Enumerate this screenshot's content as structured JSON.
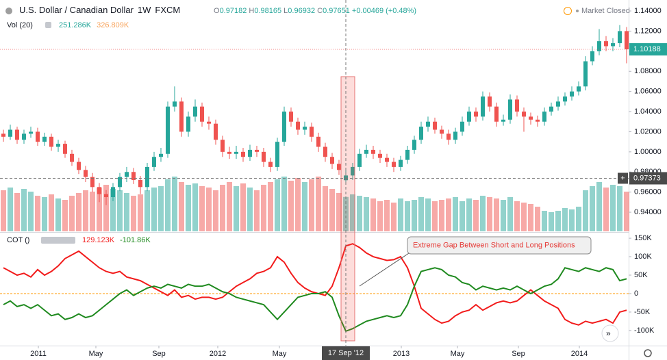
{
  "chart_data": [
    {
      "type": "candlestick",
      "title": "U.S. Dollar / Canadian Dollar",
      "interval": "1W",
      "source": "FXCM",
      "ohlc_letters": [
        "O",
        "H",
        "L",
        "C"
      ],
      "change": "+0.00469 (+0.48%)",
      "status": "Market Closed",
      "up_color": "#26a69a",
      "down_color": "#ef5350",
      "open": [
        1.018,
        1.015,
        1.022,
        1.012,
        1.018,
        1.02,
        1.01,
        1.015,
        1.005,
        1.008,
        0.998,
        0.99,
        0.982,
        0.975,
        0.965,
        0.958,
        0.955,
        0.965,
        0.975,
        0.98,
        0.972,
        0.965,
        0.985,
        0.995,
        0.998,
        1.045,
        1.05,
        1.02,
        1.035,
        1.045,
        1.03,
        1.028,
        1.012,
        1.0,
        0.998,
        1.0,
        0.995,
        1.002,
        1.0,
        0.99,
        0.985,
        1.01,
        1.04,
        1.03,
        1.022,
        1.025,
        1.015,
        1.005,
        0.995,
        0.988,
        0.97182,
        0.97651,
        0.985,
        0.998,
        1.002,
        0.998,
        0.994,
        0.99,
        0.985,
        0.992,
        1.002,
        1.012,
        1.025,
        1.03,
        1.022,
        1.018,
        1.012,
        1.02,
        1.03,
        1.04,
        1.035,
        1.055,
        1.045,
        1.03,
        1.032,
        1.052,
        1.04,
        1.035,
        1.032,
        1.03,
        1.04,
        1.045,
        1.05,
        1.055,
        1.06,
        1.065,
        1.09,
        1.1,
        1.11,
        1.105,
        1.108,
        1.12
      ],
      "high": [
        1.022,
        1.027,
        1.025,
        1.022,
        1.025,
        1.024,
        1.019,
        1.018,
        1.012,
        1.011,
        1.002,
        0.994,
        0.986,
        0.979,
        0.969,
        0.962,
        0.969,
        0.979,
        0.985,
        0.984,
        0.976,
        0.989,
        1.0,
        1.004,
        1.05,
        1.065,
        1.054,
        1.04,
        1.052,
        1.049,
        1.035,
        1.032,
        1.016,
        1.005,
        1.006,
        1.004,
        1.007,
        1.006,
        1.004,
        0.994,
        1.014,
        1.045,
        1.044,
        1.034,
        1.03,
        1.029,
        1.019,
        1.009,
        0.999,
        0.992,
        0.98165,
        0.989,
        1.003,
        1.007,
        1.006,
        1.002,
        0.998,
        0.994,
        0.996,
        1.006,
        1.016,
        1.03,
        1.035,
        1.034,
        1.026,
        1.022,
        1.024,
        1.035,
        1.045,
        1.044,
        1.06,
        1.059,
        1.049,
        1.037,
        1.057,
        1.056,
        1.044,
        1.039,
        1.036,
        1.044,
        1.049,
        1.055,
        1.059,
        1.065,
        1.07,
        1.095,
        1.105,
        1.122,
        1.115,
        1.113,
        1.126,
        1.124
      ],
      "low": [
        1.01,
        1.012,
        1.008,
        1.008,
        1.014,
        1.006,
        1.006,
        1.001,
        1.0,
        0.994,
        0.986,
        0.978,
        0.97,
        0.96,
        0.95,
        0.947,
        0.951,
        0.961,
        0.97,
        0.968,
        0.958,
        0.961,
        0.981,
        0.99,
        0.994,
        1.04,
        1.015,
        1.015,
        1.03,
        1.025,
        1.022,
        1.007,
        0.995,
        0.993,
        0.993,
        0.99,
        0.991,
        0.995,
        0.985,
        0.98,
        0.981,
        1.006,
        1.025,
        1.017,
        1.017,
        1.01,
        1.0,
        0.99,
        0.983,
        0.977,
        0.96932,
        0.972,
        0.981,
        0.994,
        0.993,
        0.989,
        0.985,
        0.98,
        0.981,
        0.988,
        0.998,
        1.008,
        1.02,
        1.018,
        1.013,
        1.007,
        1.008,
        1.016,
        1.026,
        1.03,
        1.031,
        1.04,
        1.025,
        1.026,
        1.028,
        1.035,
        1.02,
        1.027,
        1.025,
        1.026,
        1.036,
        1.041,
        1.046,
        1.051,
        1.056,
        1.061,
        1.086,
        1.096,
        1.1,
        1.1,
        1.104,
        1.088
      ],
      "close": [
        1.015,
        1.022,
        1.012,
        1.018,
        1.02,
        1.01,
        1.015,
        1.005,
        1.008,
        0.998,
        0.99,
        0.982,
        0.975,
        0.965,
        0.958,
        0.955,
        0.965,
        0.975,
        0.98,
        0.972,
        0.965,
        0.985,
        0.995,
        0.998,
        1.045,
        1.05,
        1.02,
        1.035,
        1.045,
        1.03,
        1.028,
        1.012,
        1.0,
        0.998,
        1.0,
        0.995,
        1.002,
        1.0,
        0.99,
        0.985,
        1.01,
        1.04,
        1.03,
        1.022,
        1.025,
        1.015,
        1.005,
        0.995,
        0.988,
        0.982,
        0.97651,
        0.985,
        0.998,
        1.002,
        0.998,
        0.994,
        0.99,
        0.985,
        0.992,
        1.002,
        1.012,
        1.025,
        1.03,
        1.022,
        1.018,
        1.012,
        1.02,
        1.03,
        1.04,
        1.035,
        1.055,
        1.045,
        1.03,
        1.032,
        1.052,
        1.04,
        1.035,
        1.032,
        1.03,
        1.04,
        1.045,
        1.05,
        1.055,
        1.06,
        1.065,
        1.09,
        1.1,
        1.11,
        1.105,
        1.108,
        1.12,
        1.10188
      ],
      "ylim": [
        0.921,
        1.1509
      ],
      "yticks": [
        {
          "value": 1.14,
          "label": "1.14000"
        },
        {
          "value": 1.12,
          "label": "1.12000"
        },
        {
          "value": 1.1,
          "label": "1.10000"
        },
        {
          "value": 1.08,
          "label": "1.08000"
        },
        {
          "value": 1.06,
          "label": "1.06000"
        },
        {
          "value": 1.04,
          "label": "1.04000"
        },
        {
          "value": 1.02,
          "label": "1.02000"
        },
        {
          "value": 1.0,
          "label": "1.00000"
        },
        {
          "value": 0.98,
          "label": "0.98000"
        },
        {
          "value": 0.96,
          "label": "0.96000"
        },
        {
          "value": 0.94,
          "label": "0.94000"
        }
      ],
      "crosshair_price": 0.97373
    },
    {
      "type": "bar",
      "title": "Vol (20)",
      "legend_values": [
        "251.286K",
        "326.809K"
      ],
      "legend_colors": [
        "#26a69a",
        "#f7a35c"
      ],
      "values": [
        300,
        320,
        280,
        310,
        290,
        260,
        250,
        270,
        240,
        230,
        260,
        280,
        300,
        290,
        320,
        340,
        310,
        300,
        280,
        260,
        270,
        300,
        320,
        330,
        380,
        400,
        360,
        340,
        350,
        330,
        320,
        300,
        340,
        360,
        330,
        350,
        320,
        300,
        340,
        360,
        380,
        400,
        370,
        390,
        360,
        380,
        400,
        330,
        310,
        280,
        251.286,
        270,
        260,
        250,
        240,
        220,
        230,
        210,
        240,
        220,
        230,
        250,
        240,
        220,
        230,
        240,
        250,
        220,
        240,
        230,
        260,
        250,
        240,
        230,
        250,
        220,
        210,
        200,
        180,
        150,
        140,
        150,
        170,
        160,
        180,
        300,
        330,
        360,
        320,
        340,
        330,
        290
      ]
    },
    {
      "type": "line",
      "title": "COT ()",
      "annotation": "Extreme Gap Between Short and Long Positions",
      "series": [
        {
          "name": "129.123K",
          "color": "#f21b1b",
          "values": [
            70,
            60,
            50,
            55,
            45,
            65,
            50,
            60,
            75,
            95,
            105,
            115,
            100,
            85,
            70,
            60,
            55,
            60,
            45,
            40,
            35,
            25,
            15,
            5,
            -5,
            10,
            -10,
            -5,
            -15,
            -10,
            -10,
            -15,
            -10,
            5,
            20,
            30,
            40,
            55,
            60,
            70,
            100,
            85,
            55,
            30,
            15,
            5,
            0,
            -5,
            20,
            70,
            129.123,
            135,
            125,
            110,
            100,
            95,
            90,
            92,
            100,
            70,
            20,
            -40,
            -55,
            -70,
            -80,
            -75,
            -60,
            -50,
            -45,
            -30,
            -45,
            -35,
            -25,
            -20,
            -25,
            -20,
            -5,
            10,
            -5,
            -20,
            -30,
            -40,
            -70,
            -80,
            -85,
            -75,
            -80,
            -75,
            -70,
            -80,
            -50,
            -45
          ]
        },
        {
          "name": "-101.86K",
          "color": "#1f8a1f",
          "values": [
            -30,
            -20,
            -35,
            -30,
            -40,
            -30,
            -45,
            -60,
            -55,
            -70,
            -65,
            -55,
            -65,
            -60,
            -45,
            -30,
            -15,
            0,
            10,
            -5,
            5,
            15,
            20,
            15,
            25,
            20,
            15,
            25,
            20,
            20,
            25,
            15,
            5,
            0,
            -10,
            -15,
            -20,
            -25,
            -30,
            -50,
            -70,
            -50,
            -30,
            -10,
            -5,
            0,
            0,
            5,
            -10,
            -60,
            -101.86,
            -95,
            -85,
            -75,
            -70,
            -65,
            -60,
            -65,
            -60,
            -30,
            20,
            60,
            65,
            70,
            65,
            50,
            45,
            30,
            25,
            10,
            20,
            15,
            10,
            15,
            10,
            20,
            10,
            0,
            10,
            20,
            25,
            40,
            70,
            65,
            60,
            70,
            65,
            60,
            70,
            65,
            35,
            40
          ]
        }
      ],
      "zero_line_color": "#ff9800",
      "ylim": [
        -141,
        165
      ],
      "yticks": [
        {
          "value": 150,
          "label": "150K"
        },
        {
          "value": 100,
          "label": "100K"
        },
        {
          "value": 50,
          "label": "50K"
        },
        0,
        {
          "value": -50,
          "label": "-50K"
        },
        {
          "value": -100,
          "label": "-100K"
        }
      ],
      "xticks": [
        {
          "value": 5.1,
          "label": "2011"
        },
        {
          "value": 13.5,
          "label": "May"
        },
        {
          "value": 22.7,
          "label": "Sep"
        },
        {
          "value": 31.3,
          "label": "2012"
        },
        {
          "value": 40.3,
          "label": "May"
        },
        {
          "value": 58.1,
          "label": "2013"
        },
        {
          "value": 66.3,
          "label": "May"
        },
        {
          "value": 75.2,
          "label": "Sep"
        },
        {
          "value": 84.1,
          "label": "2014"
        }
      ],
      "crosshair": {
        "index": 50,
        "label": "17 Sep '12"
      }
    }
  ]
}
